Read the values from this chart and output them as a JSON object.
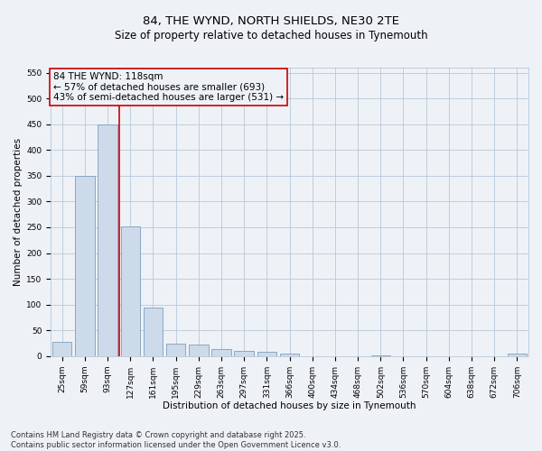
{
  "title_line1": "84, THE WYND, NORTH SHIELDS, NE30 2TE",
  "title_line2": "Size of property relative to detached houses in Tynemouth",
  "xlabel": "Distribution of detached houses by size in Tynemouth",
  "ylabel": "Number of detached properties",
  "categories": [
    "25sqm",
    "59sqm",
    "93sqm",
    "127sqm",
    "161sqm",
    "195sqm",
    "229sqm",
    "263sqm",
    "297sqm",
    "331sqm",
    "366sqm",
    "400sqm",
    "434sqm",
    "468sqm",
    "502sqm",
    "536sqm",
    "570sqm",
    "604sqm",
    "638sqm",
    "672sqm",
    "706sqm"
  ],
  "values": [
    27,
    350,
    449,
    252,
    94,
    24,
    23,
    13,
    10,
    8,
    5,
    0,
    0,
    0,
    2,
    0,
    0,
    0,
    0,
    0,
    4
  ],
  "bar_color": "#cddaea",
  "bar_edge_color": "#7a9fc0",
  "grid_color": "#b8c8d8",
  "background_color": "#eef2f7",
  "annotation_box_text": "84 THE WYND: 118sqm\n← 57% of detached houses are smaller (693)\n43% of semi-detached houses are larger (531) →",
  "vline_x_index": 2.53,
  "vline_color": "#cc0000",
  "annotation_box_edge_color": "#cc0000",
  "ylim": [
    0,
    560
  ],
  "yticks": [
    0,
    50,
    100,
    150,
    200,
    250,
    300,
    350,
    400,
    450,
    500,
    550
  ],
  "footnote": "Contains HM Land Registry data © Crown copyright and database right 2025.\nContains public sector information licensed under the Open Government Licence v3.0.",
  "title_fontsize": 9.5,
  "subtitle_fontsize": 8.5,
  "axis_label_fontsize": 7.5,
  "tick_fontsize": 6.5,
  "annotation_fontsize": 7.5,
  "footnote_fontsize": 6.0
}
